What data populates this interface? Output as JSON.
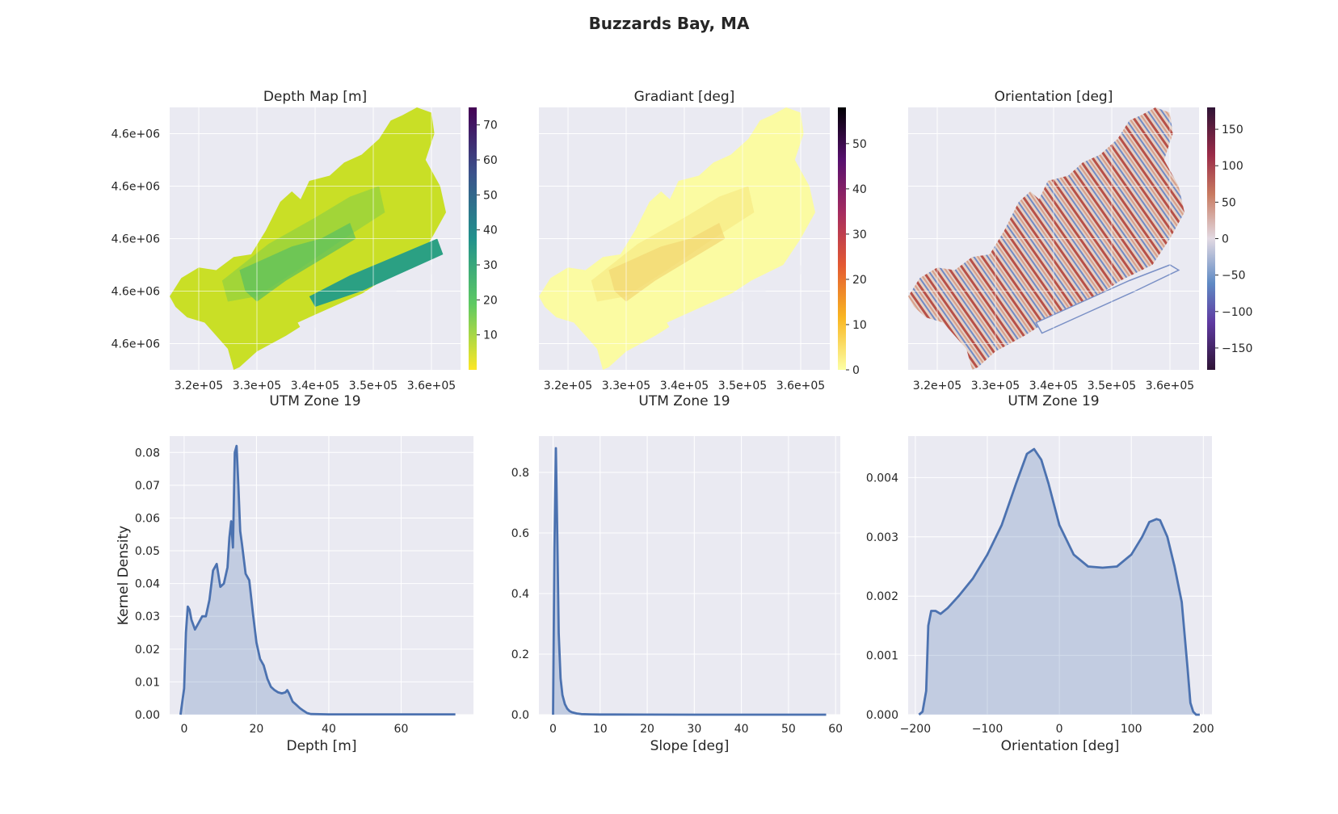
{
  "figure": {
    "title": "Buzzards Bay, MA"
  },
  "maps": [
    {
      "title": "Depth Map [m]",
      "xlabel": "UTM Zone 19",
      "xticks": [
        "3.2e+05",
        "3.3e+05",
        "3.4e+05",
        "3.5e+05",
        "3.6e+05"
      ],
      "yticks": [
        "4.6e+06",
        "4.6e+06",
        "4.6e+06",
        "4.6e+06",
        "4.6e+06"
      ],
      "colormap": "viridis_r",
      "colorbar_ticks": [
        "10",
        "20",
        "30",
        "40",
        "50",
        "60",
        "70"
      ],
      "colorbar_range": [
        0,
        75
      ],
      "fill_colors": [
        "#c9df26",
        "#9bd33c",
        "#5cc05f",
        "#2ba083"
      ]
    },
    {
      "title": "Gradiant [deg]",
      "xlabel": "UTM Zone 19",
      "xticks": [
        "3.2e+05",
        "3.3e+05",
        "3.4e+05",
        "3.5e+05",
        "3.6e+05"
      ],
      "yticks": [],
      "colormap": "inferno_r",
      "colorbar_ticks": [
        "0",
        "10",
        "20",
        "30",
        "40",
        "50"
      ],
      "colorbar_range": [
        0,
        58
      ],
      "fill_colors": [
        "#fbfba2",
        "#f7ec8a",
        "#f3d874",
        "#fbf3a0"
      ]
    },
    {
      "title": "Orientation [deg]",
      "xlabel": "UTM Zone 19",
      "xticks": [
        "3.2e+05",
        "3.3e+05",
        "3.4e+05",
        "3.5e+05",
        "3.6e+05"
      ],
      "yticks": [],
      "colormap": "twilight_shifted",
      "colorbar_ticks": [
        "150",
        "100",
        "50",
        "0",
        "−50",
        "−100",
        "−150"
      ],
      "colorbar_range": [
        -180,
        180
      ],
      "fill_colors": [
        "#d6a38c",
        "#8e3a3a",
        "#6c8ac2",
        "#e7ddd6"
      ]
    }
  ],
  "chart_data": [
    {
      "type": "area",
      "title": "",
      "xlabel": "Depth [m]",
      "ylabel": "Kernel Density",
      "xlim": [
        -4,
        80
      ],
      "ylim": [
        0,
        0.085
      ],
      "xticks": [
        0,
        20,
        40,
        60
      ],
      "yticks": [
        0.0,
        0.01,
        0.02,
        0.03,
        0.04,
        0.05,
        0.06,
        0.07,
        0.08
      ],
      "ytick_labels": [
        "0.00",
        "0.01",
        "0.02",
        "0.03",
        "0.04",
        "0.05",
        "0.06",
        "0.07",
        "0.08"
      ],
      "x": [
        -1,
        0,
        0.5,
        1,
        1.5,
        2,
        3,
        4,
        5,
        6,
        7,
        8,
        9,
        10,
        11,
        12,
        12.5,
        13,
        13.5,
        14,
        14.5,
        15,
        15.5,
        16,
        17,
        18,
        19,
        20,
        21,
        22,
        23,
        24,
        25,
        26,
        27,
        28,
        28.5,
        29,
        30,
        31,
        32,
        33,
        34,
        35,
        40,
        50,
        60,
        70,
        75
      ],
      "y": [
        0,
        0.008,
        0.025,
        0.033,
        0.032,
        0.029,
        0.026,
        0.028,
        0.03,
        0.03,
        0.035,
        0.044,
        0.046,
        0.039,
        0.04,
        0.045,
        0.054,
        0.059,
        0.051,
        0.08,
        0.082,
        0.07,
        0.056,
        0.052,
        0.043,
        0.041,
        0.031,
        0.022,
        0.017,
        0.015,
        0.011,
        0.0085,
        0.0075,
        0.0068,
        0.0065,
        0.0068,
        0.0075,
        0.0065,
        0.004,
        0.003,
        0.002,
        0.0012,
        0.0005,
        0.0002,
        0.0001,
        0.0001,
        0.0001,
        0.0001,
        0.0001
      ],
      "color": "#4c72b0",
      "grid": true
    },
    {
      "type": "area",
      "title": "",
      "xlabel": "Slope [deg]",
      "ylabel": "",
      "xlim": [
        -3,
        61
      ],
      "ylim": [
        0,
        0.92
      ],
      "xticks": [
        0,
        10,
        20,
        30,
        40,
        50,
        60
      ],
      "yticks": [
        0.0,
        0.2,
        0.4,
        0.6,
        0.8
      ],
      "ytick_labels": [
        "0.0",
        "0.2",
        "0.4",
        "0.6",
        "0.8"
      ],
      "x": [
        0,
        0.3,
        0.6,
        0.9,
        1.2,
        1.6,
        2.0,
        2.5,
        3.0,
        3.5,
        4.0,
        5.0,
        6.0,
        8.0,
        10,
        20,
        30,
        40,
        50,
        58
      ],
      "y": [
        0,
        0.55,
        0.88,
        0.6,
        0.27,
        0.12,
        0.065,
        0.035,
        0.02,
        0.012,
        0.008,
        0.004,
        0.002,
        0.001,
        0.0005,
        0.0002,
        0.0001,
        0.0001,
        0.0001,
        0.0001
      ],
      "color": "#4c72b0",
      "grid": true
    },
    {
      "type": "area",
      "title": "",
      "xlabel": "Orientation [deg]",
      "ylabel": "",
      "xlim": [
        -210,
        212
      ],
      "ylim": [
        0,
        0.0047
      ],
      "xticks": [
        -200,
        -100,
        0,
        100,
        200
      ],
      "xtick_labels": [
        "−200",
        "−100",
        "0",
        "100",
        "200"
      ],
      "yticks": [
        0.0,
        0.001,
        0.002,
        0.003,
        0.004
      ],
      "ytick_labels": [
        "0.000",
        "0.001",
        "0.002",
        "0.003",
        "0.004"
      ],
      "x": [
        -195,
        -190,
        -185,
        -182,
        -178,
        -172,
        -165,
        -155,
        -140,
        -120,
        -100,
        -80,
        -60,
        -45,
        -35,
        -25,
        -15,
        0,
        20,
        40,
        60,
        80,
        100,
        115,
        125,
        135,
        140,
        150,
        160,
        170,
        178,
        182,
        186,
        190,
        195
      ],
      "y": [
        0,
        5e-05,
        0.0004,
        0.0015,
        0.00175,
        0.00175,
        0.0017,
        0.0018,
        0.002,
        0.0023,
        0.0027,
        0.0032,
        0.0039,
        0.0044,
        0.00448,
        0.0043,
        0.0039,
        0.0032,
        0.0027,
        0.0025,
        0.00248,
        0.0025,
        0.0027,
        0.003,
        0.00325,
        0.0033,
        0.00328,
        0.003,
        0.0025,
        0.0019,
        0.0008,
        0.0002,
        5e-05,
        0.0,
        0.0
      ],
      "color": "#4c72b0",
      "grid": true
    }
  ]
}
